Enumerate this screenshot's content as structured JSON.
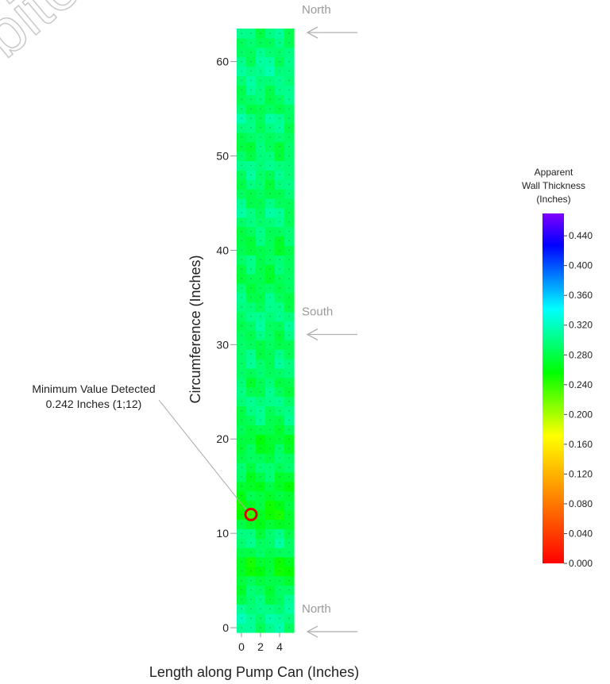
{
  "watermark": "bited",
  "chart_data": {
    "type": "heatmap",
    "title": "",
    "xlabel": "Length along Pump Can (Inches)",
    "ylabel": "Circumference (Inches)",
    "x_range": [
      -0.5,
      5.5
    ],
    "y_range": [
      -0.5,
      63.5
    ],
    "x_ticks": [
      0,
      2,
      4
    ],
    "y_ticks": [
      0,
      10,
      20,
      30,
      40,
      50,
      60
    ],
    "grid": false,
    "direction_labels": [
      {
        "label": "North",
        "y": 63.5
      },
      {
        "label": "South",
        "y": 31.5
      },
      {
        "label": "North",
        "y": 0
      }
    ],
    "annotation": {
      "line1": "Minimum Value Detected",
      "line2": "0.242 Inches (1;12)",
      "x": 1,
      "y": 12,
      "value": 0.242
    },
    "colorbar": {
      "title_lines": [
        "Apparent",
        "Wall Thickness",
        "(Inches)"
      ],
      "min": 0.0,
      "max": 0.47,
      "ticks": [
        "0.000",
        "0.040",
        "0.080",
        "0.120",
        "0.160",
        "0.200",
        "0.240",
        "0.280",
        "0.320",
        "0.360",
        "0.400",
        "0.440"
      ],
      "colors": [
        "#ff0000",
        "#ff4000",
        "#ff8000",
        "#ffbf00",
        "#ffff00",
        "#80ff00",
        "#00ff00",
        "#00ff80",
        "#00ffff",
        "#0080ff",
        "#0000ff",
        "#8000ff"
      ]
    },
    "row_means": [
      0.3,
      0.305,
      0.3,
      0.29,
      0.285,
      0.28,
      0.262,
      0.265,
      0.285,
      0.295,
      0.29,
      0.27,
      0.258,
      0.265,
      0.275,
      0.27,
      0.28,
      0.29,
      0.285,
      0.275,
      0.27,
      0.28,
      0.29,
      0.295,
      0.3,
      0.29,
      0.285,
      0.29,
      0.295,
      0.29,
      0.285,
      0.29,
      0.295,
      0.3,
      0.295,
      0.29,
      0.285,
      0.28,
      0.285,
      0.29,
      0.28,
      0.285,
      0.29,
      0.295,
      0.3,
      0.29,
      0.285,
      0.29,
      0.295,
      0.3,
      0.29,
      0.285,
      0.29,
      0.295,
      0.3,
      0.285,
      0.29,
      0.295,
      0.3,
      0.305,
      0.3,
      0.295,
      0.29,
      0.295
    ]
  }
}
